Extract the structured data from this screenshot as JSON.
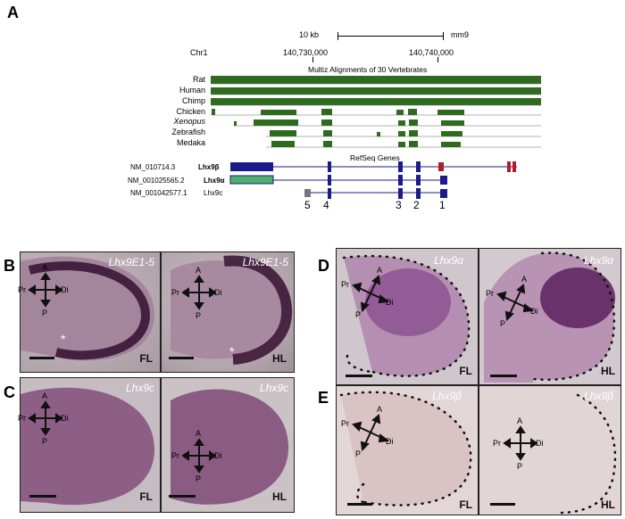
{
  "panel_a": {
    "label": "A",
    "scale_label": "10 kb",
    "assembly": "mm9",
    "chrom": "Chr1",
    "coord_left": "140,730,000",
    "coord_right": "140,740,000",
    "alignment_title": "Multiz Alignments of 30 Vertebrates",
    "species": [
      "Rat",
      "Human",
      "Chimp",
      "Chicken",
      "Xenopus",
      "Zebrafish",
      "Medaka"
    ],
    "refseq_title": "RefSeq Genes",
    "transcripts": [
      {
        "id": "NM_010714.3",
        "name": "Lhx9β"
      },
      {
        "id": "NM_001025565.2",
        "name": "Lhx9α"
      },
      {
        "id": "NM_001042577.1",
        "name": "Lhx9c"
      }
    ],
    "exon_numbers": [
      "5",
      "4",
      "3",
      "2",
      "1"
    ]
  },
  "panels": {
    "B": {
      "label": "B",
      "probe": "Lhx9E1-5",
      "left_tag": "FL",
      "right_tag": "HL"
    },
    "C": {
      "label": "C",
      "probe": "Lhx9c",
      "left_tag": "FL",
      "right_tag": "HL"
    },
    "D": {
      "label": "D",
      "probe": "Lhx9α",
      "left_tag": "FL",
      "right_tag": "HL"
    },
    "E": {
      "label": "E",
      "probe": "Lhx9β",
      "left_tag": "FL",
      "right_tag": "HL"
    }
  },
  "axis": {
    "a": "A",
    "p": "P",
    "pr": "Pr",
    "di": "Di"
  },
  "asterisk": "*",
  "colors": {
    "conservation": "#2f6b1f",
    "transcript": "#1b1b8a",
    "alt_exon": "#b01c2c",
    "alpha_exon": "#4fae6c",
    "c_exon": "#777777"
  }
}
